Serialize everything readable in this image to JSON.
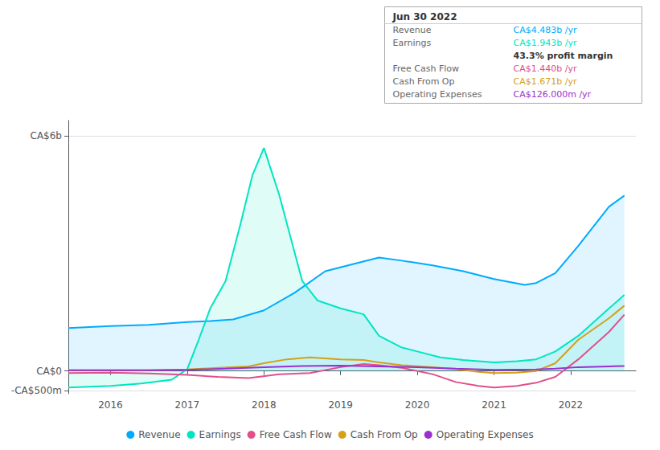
{
  "chart_data": {
    "type": "line",
    "title": "Jun 30 2022",
    "xlim": [
      2015.45,
      2022.85
    ],
    "xticks": [
      2016,
      2017,
      2018,
      2019,
      2020,
      2021,
      2022
    ],
    "ylim": [
      -0.58,
      6.4
    ],
    "yticks": [
      {
        "value": -0.5,
        "label": "-CA$500m"
      },
      {
        "value": 0,
        "label": "CA$0"
      },
      {
        "value": 6,
        "label": "CA$6b"
      }
    ],
    "grid": true,
    "legend": "bottom",
    "series": [
      {
        "name": "Revenue",
        "color": "#00aaff",
        "x": [
          2015.45,
          2016.0,
          2016.5,
          2017.0,
          2017.3,
          2017.6,
          2018.0,
          2018.4,
          2018.8,
          2019.2,
          2019.5,
          2019.8,
          2020.2,
          2020.6,
          2021.0,
          2021.4,
          2021.55,
          2021.8,
          2022.1,
          2022.5,
          2022.7
        ],
        "values": [
          1.1,
          1.15,
          1.18,
          1.25,
          1.28,
          1.32,
          1.55,
          2.0,
          2.55,
          2.75,
          2.9,
          2.82,
          2.7,
          2.55,
          2.35,
          2.2,
          2.25,
          2.5,
          3.2,
          4.2,
          4.483
        ]
      },
      {
        "name": "Earnings",
        "color": "#00e5c0",
        "x": [
          2015.45,
          2016.0,
          2016.4,
          2016.8,
          2017.0,
          2017.15,
          2017.3,
          2017.5,
          2017.7,
          2017.85,
          2018.0,
          2018.2,
          2018.5,
          2018.7,
          2019.0,
          2019.3,
          2019.5,
          2019.8,
          2020.0,
          2020.3,
          2020.6,
          2021.0,
          2021.3,
          2021.55,
          2021.8,
          2022.1,
          2022.5,
          2022.7
        ],
        "values": [
          -0.42,
          -0.38,
          -0.32,
          -0.22,
          0.05,
          0.8,
          1.6,
          2.3,
          3.8,
          5.0,
          5.7,
          4.5,
          2.3,
          1.8,
          1.6,
          1.45,
          0.9,
          0.6,
          0.5,
          0.35,
          0.28,
          0.22,
          0.25,
          0.3,
          0.5,
          0.9,
          1.6,
          1.943
        ]
      },
      {
        "name": "Free Cash Flow",
        "color": "#e0508a",
        "x": [
          2015.45,
          2016.0,
          2016.5,
          2017.0,
          2017.4,
          2017.8,
          2018.2,
          2018.6,
          2019.0,
          2019.3,
          2019.5,
          2019.8,
          2020.2,
          2020.5,
          2020.8,
          2021.0,
          2021.3,
          2021.55,
          2021.8,
          2022.1,
          2022.5,
          2022.7
        ],
        "values": [
          -0.05,
          -0.04,
          -0.06,
          -0.1,
          -0.15,
          -0.18,
          -0.08,
          -0.05,
          0.1,
          0.18,
          0.15,
          0.08,
          -0.08,
          -0.28,
          -0.38,
          -0.42,
          -0.38,
          -0.3,
          -0.15,
          0.3,
          1.0,
          1.44
        ]
      },
      {
        "name": "Cash From Op",
        "color": "#d4a017",
        "x": [
          2015.45,
          2016.0,
          2016.5,
          2017.0,
          2017.4,
          2017.8,
          2018.0,
          2018.3,
          2018.6,
          2019.0,
          2019.3,
          2019.5,
          2019.8,
          2020.2,
          2020.5,
          2020.8,
          2021.0,
          2021.3,
          2021.55,
          2021.8,
          2022.1,
          2022.5,
          2022.7
        ],
        "values": [
          0.02,
          0.02,
          0.02,
          0.04,
          0.08,
          0.12,
          0.2,
          0.3,
          0.35,
          0.3,
          0.28,
          0.22,
          0.15,
          0.1,
          0.05,
          -0.02,
          -0.05,
          -0.04,
          0.0,
          0.2,
          0.8,
          1.35,
          1.671
        ]
      },
      {
        "name": "Operating Expenses",
        "color": "#9b30d0",
        "x": [
          2015.45,
          2016.0,
          2016.5,
          2017.0,
          2017.5,
          2018.0,
          2018.5,
          2019.0,
          2019.5,
          2020.0,
          2020.5,
          2021.0,
          2021.55,
          2021.8,
          2022.1,
          2022.5,
          2022.7
        ],
        "values": [
          0.02,
          0.02,
          0.02,
          0.03,
          0.06,
          0.1,
          0.13,
          0.14,
          0.12,
          0.1,
          0.06,
          0.03,
          0.04,
          0.06,
          0.1,
          0.12,
          0.126
        ]
      }
    ],
    "annotations": [
      {
        "label": "Revenue",
        "text": "CA$4.483b /yr",
        "color": "#00aaff"
      },
      {
        "label": "Earnings",
        "text": "CA$1.943b /yr",
        "color": "#00e5c0"
      },
      {
        "text": "43.3% profit margin"
      },
      {
        "label": "Free Cash Flow",
        "text": "CA$1.440b /yr",
        "color": "#e0508a"
      },
      {
        "label": "Cash From Op",
        "text": "CA$1.671b /yr",
        "color": "#d4a017"
      },
      {
        "label": "Operating Expenses",
        "text": "CA$126.000m /yr",
        "color": "#9b30d0"
      }
    ]
  }
}
